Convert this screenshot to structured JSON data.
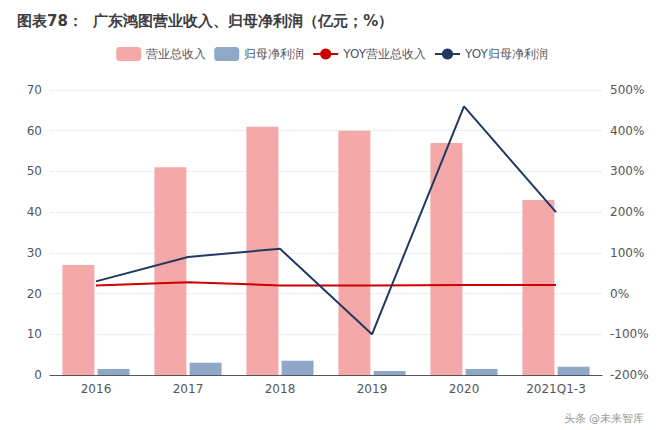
{
  "chart_data": {
    "type": "bar",
    "title": "图表78：  广东鸿图营业收入、归母净利润（亿元；%）",
    "categories": [
      "2016",
      "2017",
      "2018",
      "2019",
      "2020",
      "2021Q1-3"
    ],
    "series": [
      {
        "name": "营业总收入",
        "type": "bar",
        "color": "#F4A8A8",
        "values": [
          27,
          51,
          61,
          60,
          57,
          43
        ]
      },
      {
        "name": "归母净利润",
        "type": "bar",
        "color": "#8FA8C8",
        "values": [
          1.5,
          3.0,
          3.5,
          1.0,
          1.5,
          2.0
        ]
      },
      {
        "name": "YOY营业总收入",
        "type": "line",
        "color": "#CC0000",
        "axis": "y2",
        "values": [
          20,
          28,
          20,
          20,
          21,
          21
        ]
      },
      {
        "name": "YOY归母净利润",
        "type": "line",
        "color": "#1F3864",
        "axis": "y2",
        "values": [
          30,
          90,
          110,
          -100,
          460,
          200
        ]
      }
    ],
    "ylim": [
      0,
      70
    ],
    "yticks": [
      0,
      10,
      20,
      30,
      40,
      50,
      60,
      70
    ],
    "y2lim": [
      -200,
      500
    ],
    "y2ticks": [
      {
        "value": -200,
        "label": "-200%"
      },
      {
        "value": -100,
        "label": "-100%"
      },
      {
        "value": 0,
        "label": "0%"
      },
      {
        "value": 100,
        "label": "100%"
      },
      {
        "value": 200,
        "label": "200%"
      },
      {
        "value": 300,
        "label": "300%"
      },
      {
        "value": 400,
        "label": "400%"
      },
      {
        "value": 500,
        "label": "500%"
      }
    ],
    "grid": true,
    "legend": "top",
    "annotations": [
      "头条 @未来智库"
    ]
  }
}
